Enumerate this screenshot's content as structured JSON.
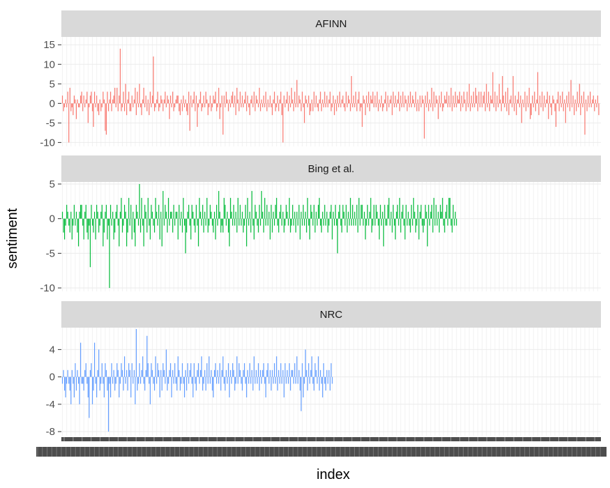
{
  "chart_data": {
    "type": "bar",
    "xlabel": "index",
    "ylabel": "sentiment",
    "colors": {
      "AFINN": "#f8766d",
      "Bing et al.": "#00ba38",
      "NRC": "#619cff",
      "strip": "#d9d9d9",
      "axis_band": "#4d4d4d"
    },
    "panels": [
      {
        "name": "AFINN",
        "ylim": [
          -11,
          17
        ],
        "yticks": [
          -10,
          -5,
          0,
          5,
          10,
          15
        ],
        "ytick_labels": [
          "-10",
          "-5",
          "0",
          "5",
          "10",
          "15"
        ],
        "values": [
          2,
          -2,
          -1,
          1,
          -1,
          3,
          -10,
          4,
          -2,
          -1,
          -3,
          2,
          1,
          -4,
          1,
          -1,
          -1,
          2,
          3,
          -2,
          2,
          -1,
          1,
          3,
          -5,
          -1,
          2,
          3,
          -2,
          -6,
          3,
          -1,
          2,
          -2,
          -3,
          1,
          -2,
          -1,
          3,
          1,
          -7,
          -8,
          3,
          -2,
          1,
          3,
          -2,
          1,
          2,
          4,
          -1,
          4,
          -2,
          2,
          14,
          -2,
          -1,
          3,
          -2,
          5,
          -3,
          1,
          3,
          -2,
          -2,
          2,
          -1,
          1,
          4,
          -3,
          3,
          -1,
          5,
          -1,
          -3,
          1,
          4,
          -1,
          2,
          -2,
          1,
          -3,
          3,
          -1,
          2,
          12,
          -2,
          -1,
          1,
          3,
          -2,
          -1,
          2,
          1,
          -2,
          1,
          3,
          -1,
          2,
          1,
          -4,
          2,
          -1,
          3,
          -2,
          -1,
          1,
          2,
          2,
          -2,
          -3,
          1,
          -2,
          2,
          -1,
          1,
          -2,
          -3,
          3,
          -7,
          2,
          -1,
          1,
          3,
          -2,
          2,
          -6,
          -1,
          1,
          3,
          -2,
          -1,
          2,
          -1,
          3,
          1,
          -3,
          -1,
          2,
          -2,
          -1,
          2,
          1,
          3,
          -2,
          -1,
          4,
          -4,
          -1,
          2,
          -8,
          2,
          -1,
          3,
          1,
          -2,
          1,
          -1,
          2,
          3,
          -1,
          2,
          -3,
          4,
          1,
          -2,
          3,
          -1,
          2,
          -1,
          1,
          3,
          -2,
          2,
          -1,
          -3,
          1,
          2,
          -1,
          3,
          -2,
          2,
          1,
          -1,
          4,
          -2,
          1,
          -1,
          2,
          -1,
          3,
          -2,
          1,
          -1,
          2,
          -1,
          -3,
          1,
          3,
          -2,
          -1,
          2,
          -2,
          1,
          3,
          -3,
          -10,
          2,
          -1,
          1,
          3,
          -2,
          2,
          -1,
          4,
          1,
          -2,
          3,
          -1,
          6,
          -1,
          2,
          1,
          -2,
          3,
          -1,
          -5,
          2,
          1,
          -1,
          2,
          -3,
          -2,
          1,
          -2,
          3,
          -1,
          2,
          -1,
          -2,
          1,
          3,
          -2,
          1,
          -1,
          3,
          -1,
          2,
          -1,
          1,
          3,
          -2,
          -1,
          2,
          -3,
          1,
          -2,
          2,
          -1,
          3,
          -1,
          1,
          2,
          -1,
          -2,
          3,
          -1,
          2,
          1,
          -2,
          7,
          -1,
          2,
          -1,
          3,
          -2,
          1,
          3,
          -2,
          -1,
          -6,
          2,
          1,
          -3,
          2,
          -1,
          3,
          -2,
          2,
          1,
          3,
          -1,
          2,
          -1,
          3,
          -2,
          1,
          -1,
          2,
          -2,
          -1,
          1,
          3,
          -2,
          2,
          -1,
          1,
          2,
          -3,
          3,
          -1,
          2,
          -1,
          1,
          3,
          -2,
          2,
          -1,
          3,
          -1,
          2,
          1,
          -2,
          2,
          -1,
          3,
          -1,
          2,
          1,
          -1,
          3,
          -2,
          1,
          -2,
          2,
          -1,
          2,
          1,
          -9,
          2,
          -1,
          3,
          -2,
          1,
          -1,
          4,
          -2,
          3,
          -1,
          2,
          1,
          -4,
          2,
          -1,
          3,
          -2,
          -1,
          2,
          1,
          3,
          -1,
          2,
          -1,
          4,
          -2,
          2,
          -1,
          3,
          -1,
          2,
          1,
          3,
          -2,
          2,
          -1,
          3,
          1,
          -2,
          3,
          -1,
          5,
          -2,
          2,
          -1,
          3,
          -1,
          4,
          2,
          -2,
          3,
          -1,
          3,
          -1,
          2,
          3,
          -2,
          5,
          -1,
          3,
          -2,
          2,
          1,
          8,
          -1,
          3,
          -2,
          2,
          -1,
          5,
          1,
          -2,
          7,
          2,
          -1,
          3,
          -2,
          4,
          -3,
          1,
          2,
          -1,
          7,
          -2,
          2,
          -3,
          1,
          3,
          -1,
          2,
          -5,
          1,
          -1,
          3,
          -2,
          2,
          -1,
          4,
          -4,
          -3,
          2,
          -1,
          3,
          -2,
          1,
          8,
          -3,
          2,
          -1,
          3,
          -2,
          2,
          -1,
          1,
          3,
          -4,
          2,
          -1,
          -3,
          2,
          1,
          -2,
          -6,
          1,
          3,
          -2,
          2,
          -1,
          3,
          -2,
          1,
          -5,
          2,
          -1,
          3,
          -2,
          6,
          -1,
          2,
          -3,
          1,
          -2,
          3,
          -1,
          5,
          -3,
          2,
          -1,
          3,
          -8,
          1,
          -2,
          2,
          -1,
          3,
          -1,
          1,
          2,
          -2,
          1,
          -1,
          2,
          -3
        ]
      },
      {
        "name": "Bing et al.",
        "ylim": [
          -10.5,
          5.3
        ],
        "yticks": [
          -10,
          -5,
          0,
          5
        ],
        "ytick_labels": [
          "-10",
          "-5",
          "0",
          "5"
        ],
        "values": [
          1,
          -2,
          -3,
          -1,
          2,
          1,
          -1,
          -2,
          1,
          -3,
          -1,
          2,
          -1,
          1,
          -2,
          -4,
          1,
          2,
          2,
          -1,
          -3,
          1,
          2,
          -2,
          -3,
          -1,
          -7,
          2,
          -1,
          -2,
          1,
          -3,
          2,
          1,
          -2,
          -1,
          1,
          2,
          -4,
          -2,
          1,
          2,
          -3,
          -1,
          -10,
          2,
          -1,
          1,
          -3,
          -2,
          1,
          2,
          -1,
          -4,
          1,
          3,
          -2,
          -1,
          2,
          1,
          -4,
          -2,
          3,
          -1,
          2,
          -3,
          1,
          -2,
          -4,
          2,
          1,
          -1,
          5,
          -2,
          3,
          -1,
          -4,
          2,
          1,
          -2,
          3,
          -1,
          -3,
          2,
          1,
          -1,
          -2,
          3,
          1,
          -1,
          2,
          -3,
          1,
          -4,
          4,
          -1,
          2,
          1,
          -2,
          3,
          -1,
          1,
          1,
          -2,
          2,
          -1,
          1,
          1,
          -3,
          2,
          -1,
          1,
          -2,
          3,
          -1,
          -5,
          -2,
          1,
          2,
          -1,
          -3,
          2,
          1,
          -1,
          -2,
          2,
          -1,
          -4,
          3,
          1,
          -1,
          2,
          -2,
          1,
          -1,
          3,
          -2,
          -1,
          2,
          1,
          -1,
          -2,
          1,
          -3,
          2,
          -1,
          4,
          1,
          -2,
          -1,
          -2,
          3,
          2,
          -1,
          1,
          -2,
          -4,
          3,
          1,
          -1,
          2,
          -1,
          1,
          -2,
          3,
          -1,
          2,
          -1,
          1,
          -2,
          -1,
          2,
          -4,
          3,
          -1,
          1,
          -2,
          4,
          -1,
          -3,
          2,
          1,
          -1,
          -2,
          2,
          -1,
          4,
          1,
          -2,
          3,
          -1,
          2,
          -1,
          1,
          -3,
          2,
          -2,
          1,
          -1,
          2,
          3,
          -1,
          -2,
          1,
          2,
          -1,
          1,
          -2,
          -1,
          2,
          1,
          -1,
          3,
          -2,
          -1,
          2,
          -1,
          1,
          -2,
          1,
          -1,
          2,
          -3,
          1,
          -1,
          2,
          -1,
          1,
          -2,
          3,
          -1,
          -3,
          2,
          1,
          -1,
          2,
          -2,
          1,
          -1,
          2,
          3,
          -1,
          -2,
          1,
          -1,
          2,
          -1,
          1,
          -2,
          -1,
          1,
          2,
          -3,
          1,
          -1,
          2,
          -1,
          -5,
          1,
          2,
          -1,
          -2,
          2,
          1,
          -1,
          2,
          -2,
          1,
          -1,
          3,
          -1,
          2,
          -1,
          1,
          -1,
          2,
          -2,
          3,
          -1,
          2,
          2,
          -1,
          1,
          -3,
          -1,
          2,
          -1,
          1,
          3,
          -2,
          -1,
          2,
          -1,
          2,
          1,
          -1,
          -3,
          2,
          -1,
          1,
          -4,
          2,
          -1,
          -1,
          2,
          3,
          -1,
          1,
          -2,
          2,
          -1,
          -3,
          1,
          2,
          -1,
          3,
          -2,
          1,
          2,
          -1,
          -3,
          2,
          -1,
          1,
          -1,
          -2,
          2,
          -1,
          3,
          1,
          -2,
          -1,
          2,
          -3,
          1,
          2,
          -1,
          -2,
          -1,
          2,
          1,
          -4,
          2,
          -1,
          1,
          2,
          -2,
          3,
          -1,
          2,
          -1,
          1,
          -2,
          2,
          1,
          3,
          -1,
          -2,
          1,
          2,
          -1,
          3,
          3,
          -1,
          -2,
          2,
          -1,
          1,
          -1
        ]
      },
      {
        "name": "NRC",
        "ylim": [
          -8.6,
          7.2
        ],
        "yticks": [
          -8,
          -4,
          0,
          4
        ],
        "ytick_labels": [
          "-8",
          "-4",
          "0",
          "4"
        ],
        "values": [
          -1,
          1,
          -2,
          -3,
          -1,
          1,
          -1,
          -2,
          -4,
          1,
          -1,
          -3,
          2,
          -2,
          1,
          -1,
          -4,
          5,
          -1,
          -1,
          -2,
          1,
          2,
          -1,
          -3,
          -6,
          1,
          2,
          -4,
          -2,
          5,
          -1,
          -3,
          1,
          4,
          -2,
          -1,
          2,
          -1,
          -3,
          2,
          1,
          -2,
          -8,
          -1,
          -3,
          2,
          -1,
          1,
          -2,
          -1,
          2,
          1,
          -3,
          -1,
          2,
          1,
          -2,
          3,
          -1,
          1,
          -2,
          2,
          1,
          -3,
          2,
          -1,
          1,
          -4,
          7,
          -2,
          -1,
          2,
          -1,
          1,
          3,
          -1,
          -2,
          1,
          6,
          2,
          -1,
          -4,
          2,
          1,
          -1,
          -2,
          3,
          -1,
          2,
          1,
          -3,
          1,
          -2,
          2,
          1,
          -1,
          4,
          -2,
          -1,
          1,
          2,
          -3,
          1,
          -1,
          2,
          -1,
          -2,
          3,
          1,
          -2,
          -1,
          2,
          -1,
          -3,
          1,
          -2,
          2,
          -1,
          1,
          2,
          -1,
          -3,
          2,
          -1,
          -2,
          1,
          2,
          -1,
          1,
          3,
          -2,
          -1,
          1,
          -2,
          2,
          -1,
          3,
          -1,
          1,
          -2,
          -3,
          1,
          2,
          -1,
          1,
          -1,
          2,
          -2,
          1,
          3,
          -1,
          -2,
          1,
          -1,
          2,
          -3,
          1,
          -1,
          2,
          1,
          -2,
          -1,
          3,
          -1,
          2,
          1,
          -1,
          -2,
          1,
          2,
          -1,
          -3,
          1,
          -1,
          2,
          -1,
          1,
          -2,
          3,
          -1,
          1,
          -1,
          2,
          -2,
          1,
          -1,
          1,
          2,
          -1,
          -3,
          1,
          2,
          -1,
          1,
          -2,
          1,
          -1,
          2,
          -1,
          3,
          -2,
          1,
          -1,
          2,
          -1,
          1,
          -3,
          2,
          -1,
          1,
          -1,
          2,
          -2,
          1,
          1,
          -1,
          2,
          -1,
          3,
          -1,
          1,
          -2,
          -5,
          2,
          -3,
          -1,
          4,
          1,
          -2,
          2,
          -1,
          1,
          3,
          -1,
          -2,
          2,
          1,
          -1,
          3,
          -2,
          1,
          -1,
          -3,
          2,
          -1,
          -2,
          1,
          -1,
          1,
          -2,
          2,
          -1
        ]
      }
    ]
  }
}
